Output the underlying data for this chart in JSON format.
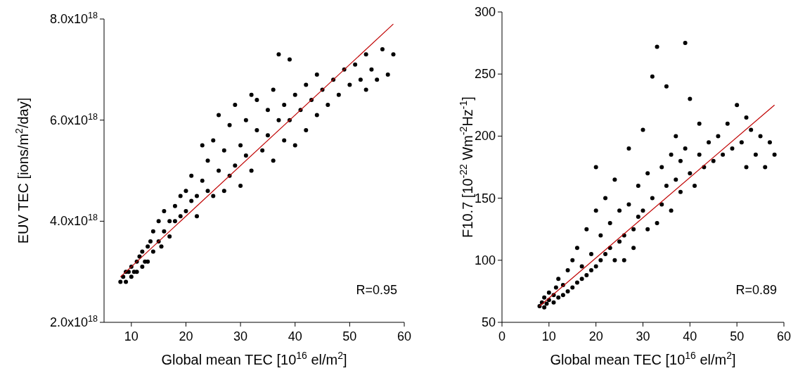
{
  "chart_data": [
    {
      "type": "scatter",
      "xlabel": "Global mean TEC [10$^{16}$ el/m$^{2}$]",
      "ylabel": "EUV TEC [ions/m$^{2}$/day]",
      "xlim": [
        5,
        60
      ],
      "xticks": [
        10,
        20,
        30,
        40,
        50,
        60
      ],
      "ylim": [
        2e+18,
        8e+18
      ],
      "yticks": [
        {
          "value": 2e+18,
          "label": "2.0x10$^{18}$"
        },
        {
          "value": 4e+18,
          "label": "4.0x10$^{18}$"
        },
        {
          "value": 6e+18,
          "label": "6.0x10$^{18}$"
        },
        {
          "value": 8e+18,
          "label": "8.0x10$^{18}$"
        }
      ],
      "grid": false,
      "annotations": [
        "R=0.95"
      ],
      "series": [
        {
          "marker": "circle",
          "color": "#000000",
          "x": [
            8,
            8.5,
            9,
            9,
            9.5,
            10,
            10,
            10.5,
            11,
            11,
            11.5,
            12,
            12,
            12.5,
            13,
            13,
            13.5,
            14,
            14,
            15,
            15,
            15.5,
            16,
            16,
            17,
            17,
            18,
            18,
            19,
            19,
            20,
            20,
            21,
            21,
            22,
            22,
            23,
            23,
            24,
            24,
            25,
            25,
            26,
            26,
            27,
            27,
            28,
            28,
            29,
            29,
            30,
            30,
            31,
            31,
            32,
            32,
            33,
            33,
            34,
            35,
            35,
            36,
            36,
            37,
            37,
            38,
            38,
            39,
            39,
            40,
            40,
            41,
            42,
            42,
            43,
            44,
            44,
            45,
            46,
            47,
            48,
            49,
            50,
            51,
            52,
            53,
            53,
            54,
            55,
            56,
            57,
            58
          ],
          "values": [
            2.8e+18,
            2.9e+18,
            3e+18,
            2.8e+18,
            3e+18,
            3.1e+18,
            2.9e+18,
            3e+18,
            3.2e+18,
            3e+18,
            3.3e+18,
            3.1e+18,
            3.4e+18,
            3.2e+18,
            3.5e+18,
            3.2e+18,
            3.6e+18,
            3.4e+18,
            3.8e+18,
            3.6e+18,
            4e+18,
            3.5e+18,
            3.8e+18,
            4.2e+18,
            4e+18,
            3.7e+18,
            4.3e+18,
            4e+18,
            4.5e+18,
            4.1e+18,
            4.6e+18,
            4.2e+18,
            4.4e+18,
            4.9e+18,
            4.5e+18,
            4.1e+18,
            4.8e+18,
            5.5e+18,
            4.6e+18,
            5.2e+18,
            5.6e+18,
            4.5e+18,
            5e+18,
            6.1e+18,
            4.6e+18,
            5.4e+18,
            5.9e+18,
            4.9e+18,
            6.3e+18,
            5.1e+18,
            5.5e+18,
            4.7e+18,
            6e+18,
            5.3e+18,
            6.5e+18,
            5e+18,
            5.8e+18,
            6.4e+18,
            5.4e+18,
            6.2e+18,
            5.7e+18,
            6.6e+18,
            5.2e+18,
            6e+18,
            7.3e+18,
            6.3e+18,
            5.6e+18,
            7.2e+18,
            6e+18,
            6.5e+18,
            5.5e+18,
            6.2e+18,
            6.7e+18,
            5.8e+18,
            6.4e+18,
            6.9e+18,
            6.1e+18,
            6.6e+18,
            6.3e+18,
            6.8e+18,
            6.5e+18,
            7e+18,
            6.7e+18,
            7.1e+18,
            6.8e+18,
            7.3e+18,
            6.6e+18,
            7e+18,
            6.8e+18,
            7.4e+18,
            6.9e+18,
            7.3e+18
          ]
        },
        {
          "type": "line",
          "color": "#c00000",
          "x": [
            8,
            58
          ],
          "values": [
            2.9e+18,
            7.9e+18
          ]
        }
      ]
    },
    {
      "type": "scatter",
      "xlabel": "Global mean TEC [10$^{16}$ el/m$^{2}$]",
      "ylabel": "F10.7 [10$^{-22}$ Wm$^{-2}$Hz$^{-1}$]",
      "xlim": [
        0,
        60
      ],
      "xticks": [
        0,
        10,
        20,
        30,
        40,
        50,
        60
      ],
      "ylim": [
        50,
        300
      ],
      "yticks": [
        50,
        100,
        150,
        200,
        250,
        300
      ],
      "grid": false,
      "annotations": [
        "R=0.89"
      ],
      "series": [
        {
          "marker": "circle",
          "color": "#000000",
          "x": [
            8,
            8.5,
            9,
            9,
            9.5,
            10,
            10,
            11,
            11,
            11.5,
            12,
            12,
            13,
            13,
            14,
            14,
            15,
            15,
            16,
            16,
            17,
            17,
            18,
            18,
            19,
            19,
            20,
            20,
            20,
            21,
            21,
            22,
            22,
            23,
            23,
            24,
            24,
            25,
            25,
            26,
            26,
            27,
            27,
            28,
            28,
            29,
            29,
            30,
            30,
            31,
            31,
            32,
            32,
            33,
            33,
            34,
            34,
            35,
            35,
            36,
            36,
            37,
            37,
            38,
            38,
            39,
            39,
            40,
            40,
            41,
            42,
            42,
            43,
            44,
            45,
            46,
            47,
            48,
            49,
            50,
            51,
            52,
            52,
            53,
            54,
            55,
            56,
            57,
            58
          ],
          "values": [
            63,
            66,
            62,
            70,
            65,
            68,
            74,
            66,
            72,
            78,
            70,
            85,
            72,
            80,
            75,
            92,
            78,
            100,
            82,
            110,
            85,
            95,
            88,
            125,
            92,
            105,
            95,
            140,
            175,
            100,
            120,
            105,
            150,
            110,
            130,
            100,
            165,
            115,
            140,
            120,
            100,
            145,
            190,
            125,
            110,
            160,
            135,
            140,
            205,
            125,
            170,
            150,
            248,
            130,
            272,
            175,
            145,
            160,
            240,
            185,
            140,
            165,
            200,
            155,
            180,
            275,
            190,
            170,
            230,
            160,
            185,
            210,
            175,
            195,
            180,
            200,
            185,
            210,
            190,
            225,
            195,
            215,
            175,
            205,
            185,
            200,
            175,
            195,
            185
          ]
        },
        {
          "type": "line",
          "color": "#c00000",
          "x": [
            8,
            58
          ],
          "values": [
            63,
            225
          ]
        }
      ]
    }
  ]
}
